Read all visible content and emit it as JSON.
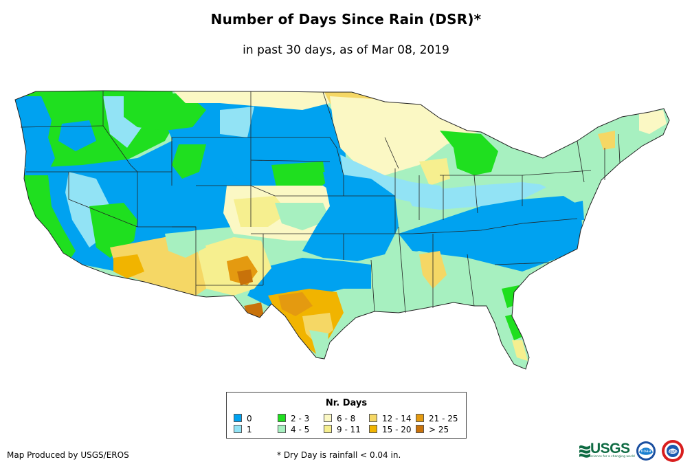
{
  "title": "Number of Days Since Rain (DSR)*",
  "subtitle": "in past 30 days, as of Mar 08, 2019",
  "legend": {
    "title": "Nr. Days",
    "items": [
      {
        "label": "0",
        "color": "#00a2f0"
      },
      {
        "label": "1",
        "color": "#92e3f5"
      },
      {
        "label": "2 - 3",
        "color": "#1fdf1f"
      },
      {
        "label": "4 - 5",
        "color": "#a7f0c0"
      },
      {
        "label": "6 - 8",
        "color": "#fbf8c4"
      },
      {
        "label": "9 - 11",
        "color": "#f6ef8f"
      },
      {
        "label": "12 - 14",
        "color": "#f5d765"
      },
      {
        "label": "15 - 20",
        "color": "#f1b400"
      },
      {
        "label": "21 - 25",
        "color": "#e49a10"
      },
      {
        "label": "> 25",
        "color": "#c8720a"
      }
    ]
  },
  "footer": {
    "credit": "Map Produced by USGS/EROS",
    "note": "* Dry Day is rainfall < 0.04 in."
  },
  "logos": {
    "usgs": "USGS",
    "usgs_tagline": "science for a changing world",
    "noaa": "noaa",
    "nws": "NWS"
  },
  "regions": [
    {
      "name": "pacific-northwest",
      "category": "2 - 3"
    },
    {
      "name": "pacific-coast",
      "category": "0"
    },
    {
      "name": "great-basin",
      "category": "0"
    },
    {
      "name": "northern-plains",
      "category": "0"
    },
    {
      "name": "upper-midwest",
      "category": "6 - 8"
    },
    {
      "name": "ohio-valley-appalachians",
      "category": "0"
    },
    {
      "name": "southeast",
      "category": "4 - 5"
    },
    {
      "name": "northeast",
      "category": "4 - 5"
    },
    {
      "name": "southwest",
      "category": "12 - 14"
    },
    {
      "name": "south-texas",
      "category": "15 - 20"
    }
  ]
}
